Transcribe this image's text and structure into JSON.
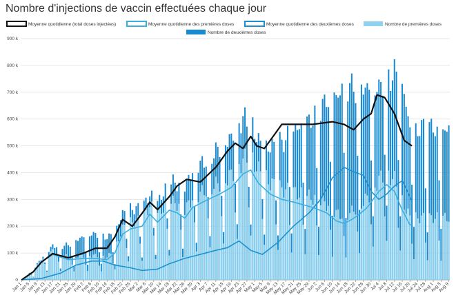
{
  "page": {
    "title": "Nombre d'injections de vaccin effectuées chaque jour"
  },
  "chart_data": {
    "type": "bar",
    "title": "Nombre d'injections de vaccin effectuées chaque jour",
    "ylim": [
      0,
      900000
    ],
    "y_ticks": [
      0,
      100000,
      200000,
      300000,
      400000,
      500000,
      600000,
      700000,
      800000,
      900000
    ],
    "y_tick_labels": [
      "0",
      "100 k",
      "200 k",
      "300 k",
      "400 k",
      "500 k",
      "600 k",
      "700 k",
      "800 k",
      "900 k"
    ],
    "grid": true,
    "legend_position": "top",
    "x_tick_labels": [
      "Jan 1",
      "Jan 5",
      "Jan 9",
      "Jan 13",
      "Jan 17",
      "Jan 21",
      "Jan 25",
      "Jan 29",
      "Feb 2",
      "Feb 6",
      "Feb 10",
      "Feb 14",
      "Feb 18",
      "Feb 22",
      "Feb 26",
      "Mar 2",
      "Mar 6",
      "Mar 10",
      "Mar 14",
      "Mar 18",
      "Mar 22",
      "Mar 26",
      "Mar 30",
      "Apr 3",
      "Apr 7",
      "Apr 11",
      "Apr 15",
      "Apr 19",
      "Apr 23",
      "Apr 27",
      "May 1",
      "May 5",
      "May 9",
      "May 13",
      "May 17",
      "May 21",
      "May 25",
      "May 29",
      "Jun 2",
      "Jun 6",
      "Jun 10",
      "Jun 14",
      "Jun 18",
      "Jun 22",
      "Jun 26",
      "Jun 30",
      "Jul 4",
      "Jul 8",
      "Jul 12",
      "Jul 16",
      "Jul 20",
      "Jul 24",
      "Jul 28",
      "Aug 1",
      "Aug 5",
      "Aug 9"
    ],
    "series": [
      {
        "name": "Moyenne quotidienne (total doses injectées)",
        "kind": "line",
        "color": "#111111",
        "points": [
          [
            0,
            0
          ],
          [
            6,
            30000
          ],
          [
            10,
            65000
          ],
          [
            16,
            98000
          ],
          [
            24,
            82000
          ],
          [
            32,
            100000
          ],
          [
            38,
            118000
          ],
          [
            44,
            118000
          ],
          [
            48,
            160000
          ],
          [
            52,
            225000
          ],
          [
            57,
            200000
          ],
          [
            62,
            248000
          ],
          [
            66,
            290000
          ],
          [
            70,
            262000
          ],
          [
            76,
            310000
          ],
          [
            80,
            350000
          ],
          [
            85,
            375000
          ],
          [
            92,
            365000
          ],
          [
            100,
            420000
          ],
          [
            106,
            480000
          ],
          [
            110,
            510000
          ],
          [
            114,
            490000
          ],
          [
            118,
            535000
          ],
          [
            121,
            500000
          ],
          [
            125,
            490000
          ],
          [
            130,
            540000
          ],
          [
            134,
            580000
          ],
          [
            140,
            580000
          ],
          [
            150,
            580000
          ],
          [
            155,
            585000
          ],
          [
            160,
            590000
          ],
          [
            166,
            580000
          ],
          [
            171,
            560000
          ],
          [
            176,
            600000
          ],
          [
            180,
            620000
          ],
          [
            183,
            690000
          ],
          [
            187,
            680000
          ],
          [
            192,
            620000
          ],
          [
            197,
            520000
          ],
          [
            201,
            500000
          ]
        ]
      },
      {
        "name": "Moyenne quotidienne des premières doses",
        "kind": "line",
        "color": "#39aee0",
        "points": [
          [
            0,
            0
          ],
          [
            6,
            30000
          ],
          [
            10,
            65000
          ],
          [
            16,
            95000
          ],
          [
            24,
            75000
          ],
          [
            32,
            80000
          ],
          [
            38,
            80000
          ],
          [
            44,
            75000
          ],
          [
            48,
            100000
          ],
          [
            52,
            170000
          ],
          [
            56,
            190000
          ],
          [
            62,
            200000
          ],
          [
            66,
            245000
          ],
          [
            70,
            215000
          ],
          [
            76,
            260000
          ],
          [
            80,
            250000
          ],
          [
            84,
            230000
          ],
          [
            88,
            270000
          ],
          [
            96,
            300000
          ],
          [
            102,
            320000
          ],
          [
            108,
            345000
          ],
          [
            114,
            395000
          ],
          [
            118,
            410000
          ],
          [
            122,
            360000
          ],
          [
            128,
            320000
          ],
          [
            134,
            300000
          ],
          [
            140,
            290000
          ],
          [
            150,
            270000
          ],
          [
            157,
            250000
          ],
          [
            162,
            220000
          ],
          [
            166,
            210000
          ],
          [
            170,
            225000
          ],
          [
            174,
            245000
          ],
          [
            178,
            270000
          ],
          [
            184,
            330000
          ],
          [
            188,
            355000
          ],
          [
            192,
            330000
          ],
          [
            196,
            260000
          ],
          [
            200,
            205000
          ],
          [
            201,
            205000
          ]
        ]
      },
      {
        "name": "Moyenne quotidienne des deuxièmes doses",
        "kind": "line",
        "color": "#1b92cf",
        "points": [
          [
            0,
            0
          ],
          [
            10,
            5000
          ],
          [
            20,
            25000
          ],
          [
            28,
            55000
          ],
          [
            36,
            70000
          ],
          [
            42,
            70000
          ],
          [
            48,
            55000
          ],
          [
            56,
            45000
          ],
          [
            62,
            35000
          ],
          [
            70,
            40000
          ],
          [
            76,
            60000
          ],
          [
            84,
            80000
          ],
          [
            92,
            95000
          ],
          [
            100,
            110000
          ],
          [
            106,
            120000
          ],
          [
            112,
            145000
          ],
          [
            118,
            110000
          ],
          [
            124,
            95000
          ],
          [
            132,
            140000
          ],
          [
            140,
            200000
          ],
          [
            148,
            250000
          ],
          [
            154,
            300000
          ],
          [
            160,
            380000
          ],
          [
            166,
            420000
          ],
          [
            172,
            400000
          ],
          [
            176,
            390000
          ],
          [
            180,
            330000
          ],
          [
            184,
            300000
          ],
          [
            188,
            320000
          ],
          [
            192,
            350000
          ],
          [
            196,
            370000
          ],
          [
            201,
            295000
          ]
        ]
      },
      {
        "name": "Nombre de premières doses",
        "kind": "bar",
        "color": "#8fd2ef"
      },
      {
        "name": "Nombre de deuxièmes doses",
        "kind": "bar",
        "color": "#1a8ad0"
      }
    ],
    "n_days": 221
  }
}
